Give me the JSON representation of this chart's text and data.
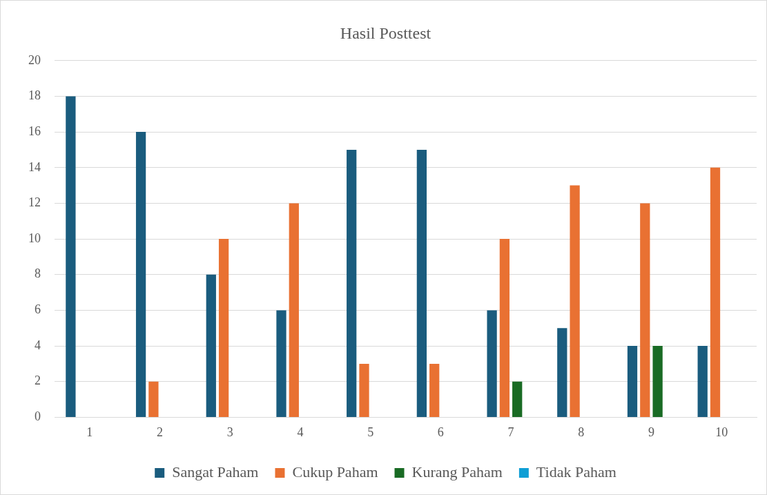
{
  "chart_data": {
    "type": "bar",
    "title": "Hasil Posttest",
    "categories": [
      "1",
      "2",
      "3",
      "4",
      "5",
      "6",
      "7",
      "8",
      "9",
      "10"
    ],
    "series": [
      {
        "name": "Sangat Paham",
        "color": "#1a5c7e",
        "values": [
          18,
          16,
          8,
          6,
          15,
          15,
          6,
          5,
          4,
          4
        ]
      },
      {
        "name": "Cukup Paham",
        "color": "#e97132",
        "values": [
          0,
          2,
          10,
          12,
          3,
          3,
          10,
          13,
          12,
          14
        ]
      },
      {
        "name": "Kurang Paham",
        "color": "#196b24",
        "values": [
          0,
          0,
          0,
          0,
          0,
          0,
          2,
          0,
          4,
          0
        ]
      },
      {
        "name": "Tidak Paham",
        "color": "#0f9ed5",
        "values": [
          0,
          0,
          0,
          0,
          0,
          0,
          0,
          0,
          0,
          0
        ]
      }
    ],
    "ylim": [
      0,
      20
    ],
    "yticks": [
      0,
      2,
      4,
      6,
      8,
      10,
      12,
      14,
      16,
      18,
      20
    ],
    "grid": "y",
    "legend": "bottom"
  }
}
